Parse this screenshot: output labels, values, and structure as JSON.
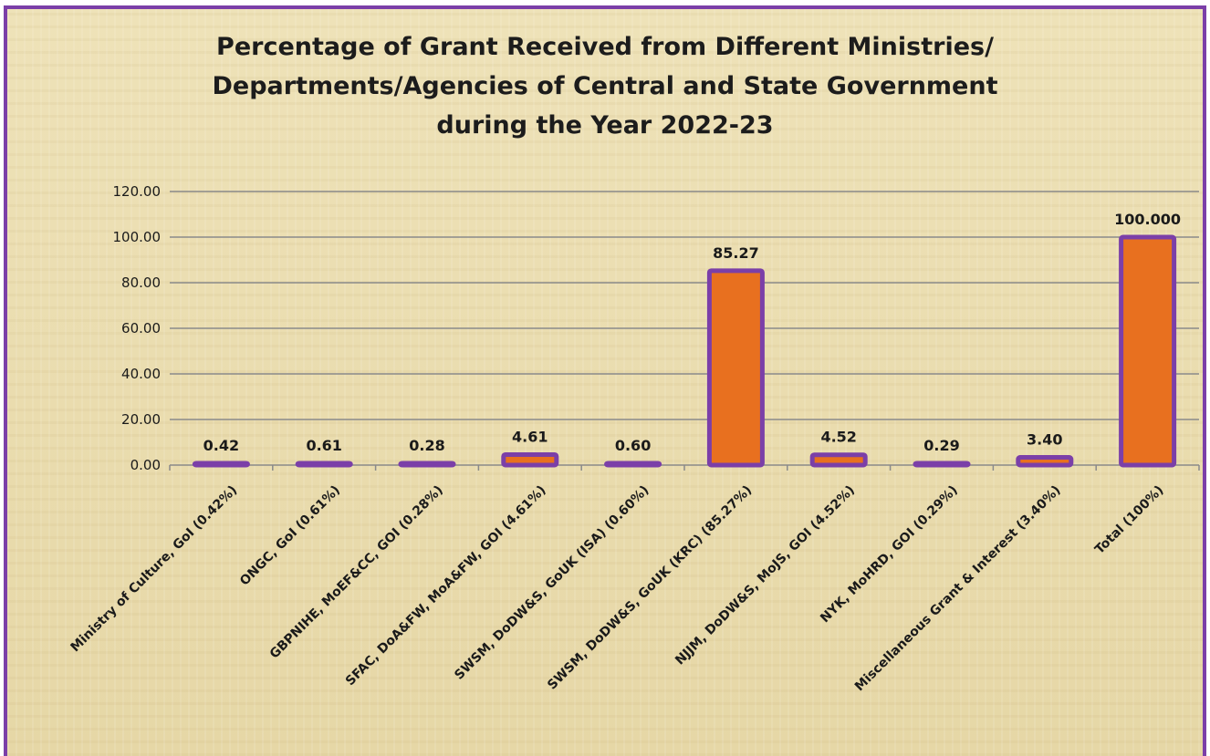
{
  "chart_data": {
    "type": "bar",
    "title_lines": [
      "Percentage of Grant Received from Different Ministries/",
      "Departments/Agencies of Central and State Government",
      "during the Year 2022-23"
    ],
    "categories": [
      "Ministry of Culture, GoI (0.42%)",
      "ONGC, GoI (0.61%)",
      "GBPNIHE, MoEF&CC, GOI (0.28%)",
      "SFAC, DoA&FW, MoA&FW, GOI (4.61%)",
      "SWSM, DoDW&S, GoUK (ISA) (0.60%)",
      "SWSM, DoDW&S, GoUK (KRC) (85.27%)",
      "NJJM, DoDW&S, MoJS, GOI (4.52%)",
      "NYK, MoHRD, GOI (0.29%)",
      "Miscellaneous Grant & Interest (3.40%)",
      "Total (100%)"
    ],
    "values": [
      0.42,
      0.61,
      0.28,
      4.61,
      0.6,
      85.27,
      4.52,
      0.29,
      3.4,
      100.0
    ],
    "data_labels": [
      "0.42",
      "0.61",
      "0.28",
      "4.61",
      "0.60",
      "85.27",
      "4.52",
      "0.29",
      "3.40",
      "100.000"
    ],
    "y_ticks": [
      "0.00",
      "20.00",
      "40.00",
      "60.00",
      "80.00",
      "100.00",
      "120.00"
    ],
    "ylim": [
      0,
      120
    ],
    "grid": true,
    "legend": "none",
    "colors": {
      "bar_fill": "#e8701f",
      "bar_outline": "#7b3fa8",
      "grid": "#8a8a8a",
      "frame": "#7b3fa8",
      "background": "#e9dcae"
    }
  }
}
